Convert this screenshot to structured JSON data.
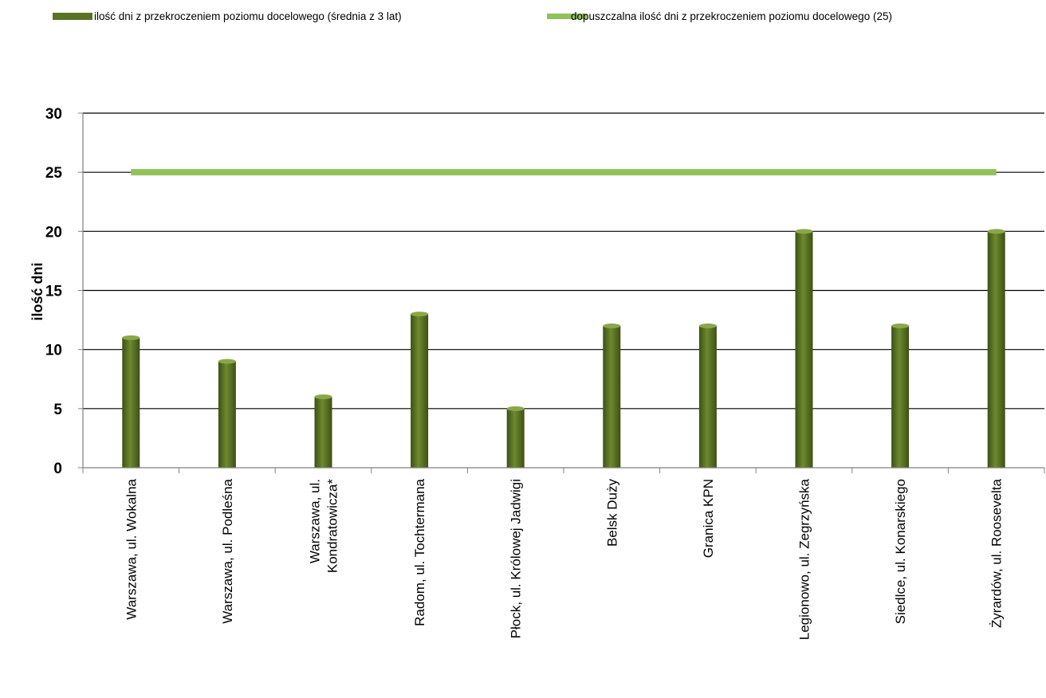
{
  "chart_data": {
    "type": "bar",
    "categories": [
      "Warszawa, ul. Wokalna",
      "Warszawa, ul. Podleśna",
      "Warszawa, ul. Kondratowicza*",
      "Radom, ul. Tochtermana",
      "Płock, ul. Królowej Jadwigi",
      "Belsk Duży",
      "Granica KPN",
      "Legionowo, ul. Zegrzyńska",
      "Siedlce, ul. Konarskiego",
      "Żyrardów, ul. Roosevelta"
    ],
    "series": [
      {
        "name": "ilość dni z przekroczeniem poziomu docelowego (średnia z 3 lat)",
        "type": "bar",
        "color": "#5a7323",
        "values": [
          11,
          9,
          6,
          13,
          5,
          12,
          12,
          20,
          12,
          20
        ]
      },
      {
        "name": "dopuszczalna ilość dni z przekroczeniem poziomu docelowego (25)",
        "type": "line",
        "color": "#92c05a",
        "values": [
          25,
          25,
          25,
          25,
          25,
          25,
          25,
          25,
          25,
          25
        ]
      }
    ],
    "ylabel": "ilość dni",
    "xlabel": "",
    "ylim": [
      0,
      30
    ],
    "yticks": [
      0,
      5,
      10,
      15,
      20,
      25,
      30
    ],
    "grid": true,
    "legend_position": "top"
  }
}
